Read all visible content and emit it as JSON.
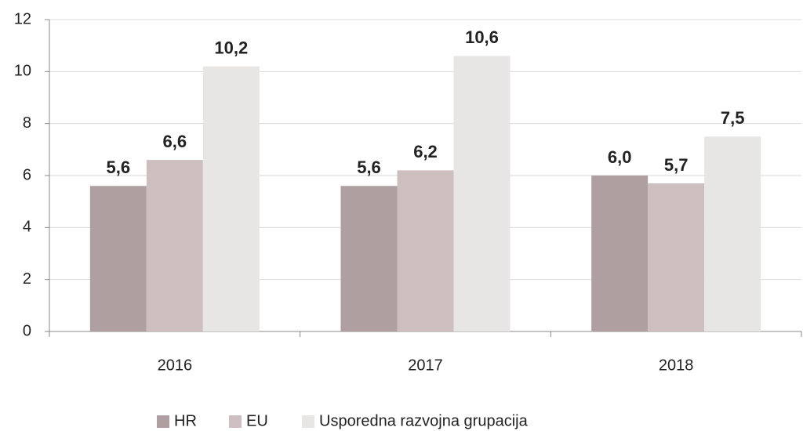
{
  "chart_data": {
    "type": "bar",
    "categories": [
      "2016",
      "2017",
      "2018"
    ],
    "series": [
      {
        "name": "HR",
        "color": "#b09fa0",
        "values": [
          5.6,
          5.6,
          6.0
        ],
        "value_labels": [
          "5,6",
          "5,6",
          "6,0"
        ]
      },
      {
        "name": "EU",
        "color": "#cdbfc0",
        "values": [
          6.6,
          6.2,
          5.7
        ],
        "value_labels": [
          "6,6",
          "6,2",
          "5,7"
        ]
      },
      {
        "name": "Usporedna razvojna grupacija",
        "color": "#e8e6e5",
        "values": [
          10.2,
          10.6,
          7.5
        ],
        "value_labels": [
          "10,2",
          "10,6",
          "7,5"
        ]
      }
    ],
    "ylim": [
      0,
      12
    ],
    "yticks": [
      0,
      2,
      4,
      6,
      8,
      10,
      12
    ],
    "grid": true,
    "legend": "bottom"
  }
}
